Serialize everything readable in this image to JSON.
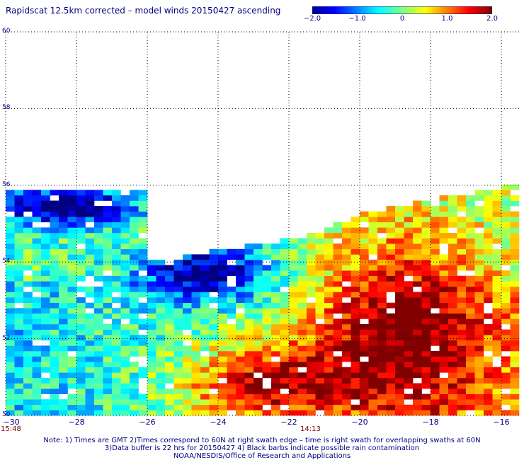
{
  "title": "Rapidscat 12.5km corrected – model winds 20150427 ascending",
  "colorbar": {
    "ticks": [
      "−2.0",
      "−1.0",
      "0",
      "1.0",
      "2.0"
    ],
    "range": [
      -2.0,
      2.0
    ],
    "colormap": "jet"
  },
  "chart_data": {
    "type": "heatmap",
    "title": "Rapidscat 12.5km corrected – model winds 20150427 ascending",
    "xlabel": "",
    "ylabel": "",
    "xlim": [
      -30,
      -15.5
    ],
    "ylim": [
      50,
      60
    ],
    "x_ticks": [
      "−30",
      "−28",
      "−26",
      "−24",
      "−22",
      "−20",
      "−18",
      "−16"
    ],
    "x_tick_values": [
      -30,
      -28,
      -26,
      -24,
      -22,
      -20,
      -18,
      -16
    ],
    "y_ticks": [
      "50",
      "52",
      "54",
      "56",
      "58",
      "60"
    ],
    "y_tick_values": [
      50,
      52,
      54,
      56,
      58,
      60
    ],
    "grid": true,
    "value_range": [
      -2.0,
      2.0
    ],
    "cell_size_deg": [
      0.25,
      0.14
    ],
    "regions": [
      {
        "name": "strong negative NW",
        "lon": [
          -29.8,
          -26.8
        ],
        "lat": [
          55.1,
          55.8
        ],
        "value": -2.0
      },
      {
        "name": "negative center",
        "lon": [
          -25.8,
          -22.8
        ],
        "lat": [
          53.2,
          54.3
        ],
        "value": -1.9
      },
      {
        "name": "strong positive SE",
        "lon": [
          -20.8,
          -16.8
        ],
        "lat": [
          50.2,
          53.9
        ],
        "value": 1.9
      },
      {
        "name": "positive south band",
        "lon": [
          -24.5,
          -21.0
        ],
        "lat": [
          50.1,
          51.5
        ],
        "value": 1.8
      }
    ]
  },
  "times": {
    "left": "15:48",
    "middle": "14:13"
  },
  "notes": [
    "Note: 1) Times are GMT 2)Times correspond to 60N at right swath edge – time is right swath for overlapping swaths at 60N",
    "3)Data buffer is 22 hrs for 20150427 4) Black barbs indicate possible rain contamination",
    "NOAA/NESDIS/Office of Research and Applications"
  ]
}
